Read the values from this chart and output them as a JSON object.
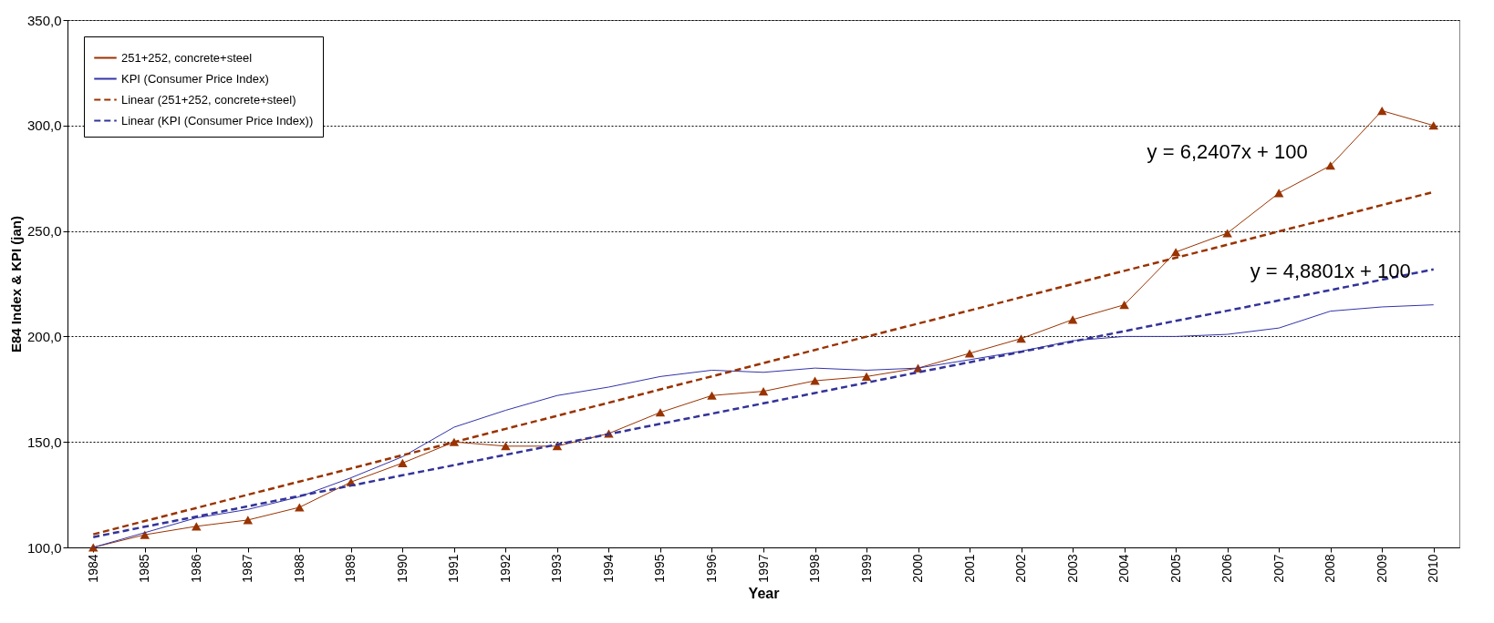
{
  "chart_data": {
    "type": "line",
    "xlabel": "Year",
    "ylabel": "E84 Index & KPI (jan)",
    "categories": [
      "1984",
      "1985",
      "1986",
      "1987",
      "1988",
      "1989",
      "1990",
      "1991",
      "1992",
      "1993",
      "1994",
      "1995",
      "1996",
      "1997",
      "1998",
      "1999",
      "2000",
      "2001",
      "2002",
      "2003",
      "2004",
      "2005",
      "2006",
      "2007",
      "2008",
      "2009",
      "2010"
    ],
    "series": [
      {
        "name": "251+252, concrete+steel",
        "color": "#993300",
        "marker": "triangle",
        "line_style": "solid",
        "values": [
          100,
          106,
          110,
          113,
          119,
          131,
          140,
          150,
          148,
          148,
          154,
          164,
          172,
          174,
          179,
          181,
          185,
          192,
          199,
          208,
          215,
          240,
          249,
          268,
          281,
          307,
          300
        ]
      },
      {
        "name": "KPI (Consumer Price Index)",
        "color": "#3333aa",
        "marker": "none",
        "line_style": "solid",
        "values": [
          100,
          107,
          114,
          118,
          124,
          133,
          143,
          157,
          165,
          172,
          176,
          181,
          184,
          183,
          185,
          184,
          185,
          189,
          193,
          198,
          200,
          200,
          201,
          204,
          212,
          214,
          215
        ]
      },
      {
        "name": "Linear (251+252, concrete+steel)",
        "color": "#993300",
        "marker": "none",
        "line_style": "dashed",
        "values": [
          106.2,
          112.5,
          118.7,
          125.0,
          131.2,
          137.4,
          143.7,
          149.9,
          156.2,
          162.4,
          168.6,
          174.9,
          181.1,
          187.4,
          193.6,
          199.9,
          206.1,
          212.3,
          218.6,
          224.8,
          231.1,
          237.3,
          243.5,
          249.8,
          256.0,
          262.3,
          268.5
        ]
      },
      {
        "name": "Linear (KPI (Consumer Price Index))",
        "color": "#333399",
        "marker": "none",
        "line_style": "dashed",
        "values": [
          104.9,
          109.8,
          114.6,
          119.5,
          124.4,
          129.3,
          134.2,
          139.0,
          143.9,
          148.8,
          153.7,
          158.6,
          163.4,
          168.3,
          173.2,
          178.1,
          183.0,
          187.8,
          192.7,
          197.6,
          202.5,
          207.4,
          212.2,
          217.1,
          222.0,
          226.9,
          231.8
        ]
      }
    ],
    "ylim": [
      100,
      350
    ],
    "yticks": [
      {
        "value": 100,
        "label": "100,0"
      },
      {
        "value": 150,
        "label": "150,0"
      },
      {
        "value": 200,
        "label": "200,0"
      },
      {
        "value": 250,
        "label": "250,0"
      },
      {
        "value": 300,
        "label": "300,0"
      },
      {
        "value": 350,
        "label": "350,0"
      }
    ],
    "grid": "y",
    "legend": "top left",
    "annotations": [
      "y = 6,2407x + 100",
      "y = 4,8801x + 100"
    ]
  }
}
